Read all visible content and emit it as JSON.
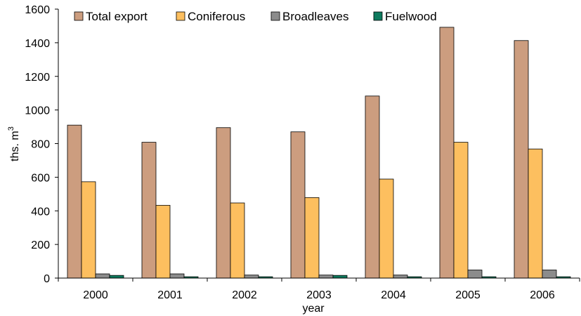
{
  "chart_data": {
    "type": "bar",
    "xlabel": "year",
    "ylabel": "ths. m",
    "ylabel_superscript": "3",
    "ylim": [
      0,
      1600
    ],
    "yticks": [
      "0",
      "200",
      "400",
      "600",
      "800",
      "1000",
      "1200",
      "1400",
      "1600"
    ],
    "legend_position": "top",
    "categories": [
      "2000",
      "2001",
      "2002",
      "2003",
      "2004",
      "2005",
      "2006"
    ],
    "series": [
      {
        "name": "Total export",
        "color": "#CC9D7F",
        "values": [
          910,
          808,
          895,
          870,
          1083,
          1492,
          1413
        ]
      },
      {
        "name": "Coniferous",
        "color": "#FDBF5F",
        "values": [
          573,
          433,
          447,
          479,
          589,
          808,
          768
        ]
      },
      {
        "name": "Broadleaves",
        "color": "#8C8C8C",
        "values": [
          25,
          25,
          18,
          18,
          18,
          48,
          48
        ]
      },
      {
        "name": "Fuelwood",
        "color": "#0E7A5E",
        "values": [
          16,
          8,
          8,
          16,
          8,
          8,
          8
        ]
      }
    ]
  }
}
